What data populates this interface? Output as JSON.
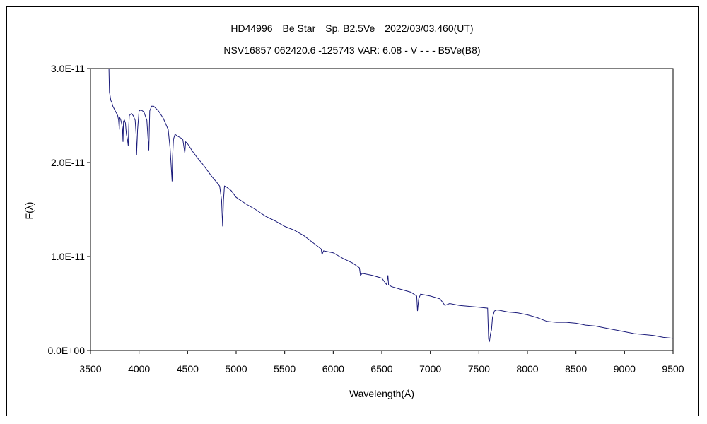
{
  "chart_data": {
    "type": "line",
    "title": "HD44996　Be Star　Sp. B2.5Ve　2022/03/03.460(UT)",
    "subtitle": "NSV16857 062420.6 -125743 VAR: 6.08 - V - - - B5Ve(B8)",
    "xlabel": "Wavelength(Å)",
    "ylabel": "F(λ)",
    "xlim": [
      3500,
      9500
    ],
    "ylim": [
      0,
      3e-11
    ],
    "x_ticks": [
      "3500",
      "4000",
      "4500",
      "5000",
      "5500",
      "6000",
      "6500",
      "7000",
      "7500",
      "8000",
      "8500",
      "9000",
      "9500"
    ],
    "y_ticks": [
      "0.0E+00",
      "1.0E-11",
      "2.0E-11",
      "3.0E-11"
    ],
    "grid": false,
    "line_color": "#1a1a7a",
    "series": [
      {
        "x": [
          3690,
          3695,
          3700,
          3710,
          3720,
          3730,
          3740,
          3750,
          3760,
          3770,
          3780,
          3790,
          3797,
          3800,
          3810,
          3820,
          3830,
          3835,
          3840,
          3850,
          3860,
          3870,
          3880,
          3889,
          3895,
          3900,
          3920,
          3940,
          3960,
          3970,
          3975,
          3985,
          4000,
          4020,
          4050,
          4080,
          4101,
          4110,
          4130,
          4150,
          4170,
          4200,
          4250,
          4300,
          4320,
          4340,
          4345,
          4355,
          4370,
          4400,
          4450,
          4471,
          4480,
          4500,
          4550,
          4600,
          4650,
          4700,
          4750,
          4800,
          4830,
          4850,
          4861,
          4870,
          4880,
          4900,
          4950,
          5000,
          5100,
          5200,
          5300,
          5400,
          5500,
          5600,
          5700,
          5800,
          5876,
          5885,
          5900,
          6000,
          6100,
          6200,
          6270,
          6280,
          6300,
          6400,
          6500,
          6550,
          6563,
          6570,
          6600,
          6700,
          6800,
          6860,
          6868,
          6880,
          6900,
          7000,
          7100,
          7150,
          7200,
          7300,
          7400,
          7500,
          7590,
          7600,
          7610,
          7620,
          7630,
          7640,
          7660,
          7680,
          7700,
          7800,
          7900,
          8000,
          8100,
          8200,
          8300,
          8400,
          8500,
          8600,
          8700,
          8800,
          8900,
          9000,
          9100,
          9200,
          9300,
          9400,
          9500
        ],
        "y": [
          3e-11,
          2.75e-11,
          2.72e-11,
          2.66e-11,
          2.64e-11,
          2.6e-11,
          2.58e-11,
          2.56e-11,
          2.54e-11,
          2.52e-11,
          2.5e-11,
          2.45e-11,
          2.35e-11,
          2.48e-11,
          2.46e-11,
          2.42e-11,
          2.36e-11,
          2.22e-11,
          2.44e-11,
          2.45e-11,
          2.42e-11,
          2.3e-11,
          2.25e-11,
          2.18e-11,
          2.4e-11,
          2.5e-11,
          2.52e-11,
          2.5e-11,
          2.45e-11,
          2.3e-11,
          2.08e-11,
          2.35e-11,
          2.55e-11,
          2.56e-11,
          2.54e-11,
          2.45e-11,
          2.13e-11,
          2.55e-11,
          2.6e-11,
          2.6e-11,
          2.58e-11,
          2.55e-11,
          2.47e-11,
          2.35e-11,
          2.15e-11,
          1.8e-11,
          2.05e-11,
          2.25e-11,
          2.3e-11,
          2.28e-11,
          2.25e-11,
          2.1e-11,
          2.22e-11,
          2.2e-11,
          2.12e-11,
          2.05e-11,
          1.99e-11,
          1.92e-11,
          1.85e-11,
          1.79e-11,
          1.75e-11,
          1.6e-11,
          1.32e-11,
          1.6e-11,
          1.75e-11,
          1.74e-11,
          1.7e-11,
          1.63e-11,
          1.56e-11,
          1.5e-11,
          1.43e-11,
          1.38e-11,
          1.32e-11,
          1.28e-11,
          1.22e-11,
          1.14e-11,
          1.08e-11,
          1.02e-11,
          1.06e-11,
          1.04e-11,
          9.8e-12,
          9.3e-12,
          8.8e-12,
          8e-12,
          8.2e-12,
          8e-12,
          7.7e-12,
          7e-12,
          8e-12,
          7e-12,
          6.8e-12,
          6.5e-12,
          6.2e-12,
          5.8e-12,
          4.2e-12,
          5.5e-12,
          6e-12,
          5.8e-12,
          5.5e-12,
          4.8e-12,
          5e-12,
          4.8e-12,
          4.7e-12,
          4.6e-12,
          4.5e-12,
          1.2e-12,
          1e-12,
          1.8e-12,
          2.2e-12,
          3.5e-12,
          4.2e-12,
          4.3e-12,
          4.3e-12,
          4.1e-12,
          4e-12,
          3.8e-12,
          3.5e-12,
          3.1e-12,
          3e-12,
          3e-12,
          2.9e-12,
          2.7e-12,
          2.6e-12,
          2.4e-12,
          2.2e-12,
          2e-12,
          1.8e-12,
          1.7e-12,
          1.6e-12,
          1.4e-12,
          1.3e-12
        ]
      }
    ]
  }
}
